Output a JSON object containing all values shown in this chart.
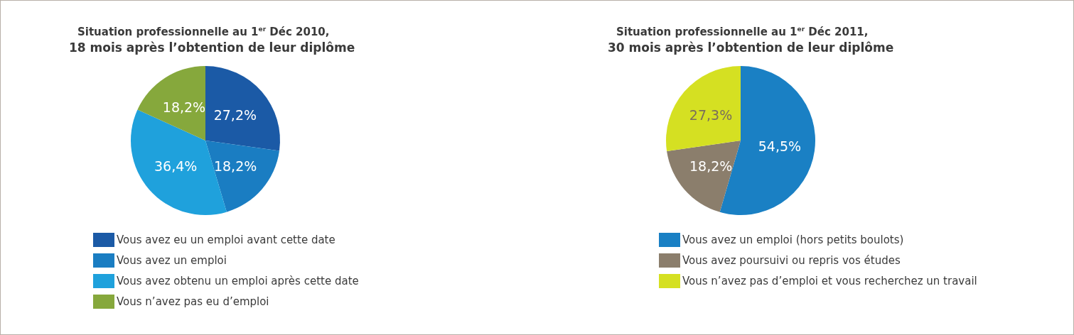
{
  "chart_data": [
    {
      "type": "pie",
      "title": "Situation professionnelle au 1$^{er}$ Déc 2010,",
      "subtitle": "18 mois après l’obtention de leur diplôme",
      "categories": [
        "Vous avez eu un emploi avant cette date",
        "Vous avez un emploi",
        "Vous avez obtenu un emploi après cette date",
        "Vous n’avez pas eu d’emploi"
      ],
      "values": [
        27.2,
        18.2,
        36.4,
        18.2
      ],
      "value_labels": [
        "27,2%",
        "18,2%",
        "36,4%",
        "18,2%"
      ],
      "colors": [
        "#1b5aa6",
        "#1a7dc2",
        "#1fa1dc",
        "#86a83c"
      ],
      "legend": "bottom"
    },
    {
      "type": "pie",
      "title": "Situation professionnelle au 1$^{er}$ Déc 2011,",
      "subtitle": "30 mois après l’obtention de leur diplôme",
      "categories": [
        "Vous avez un emploi (hors petits boulots)",
        "Vous avez poursuivi ou repris vos études",
        "Vous n’avez pas d’emploi et vous recherchez un travail"
      ],
      "values": [
        54.5,
        18.2,
        27.3
      ],
      "value_labels": [
        "54,5%",
        "18,2%",
        "27,3%"
      ],
      "colors": [
        "#1a80c4",
        "#8b7e6c",
        "#d5e022"
      ],
      "legend": "bottom"
    }
  ]
}
